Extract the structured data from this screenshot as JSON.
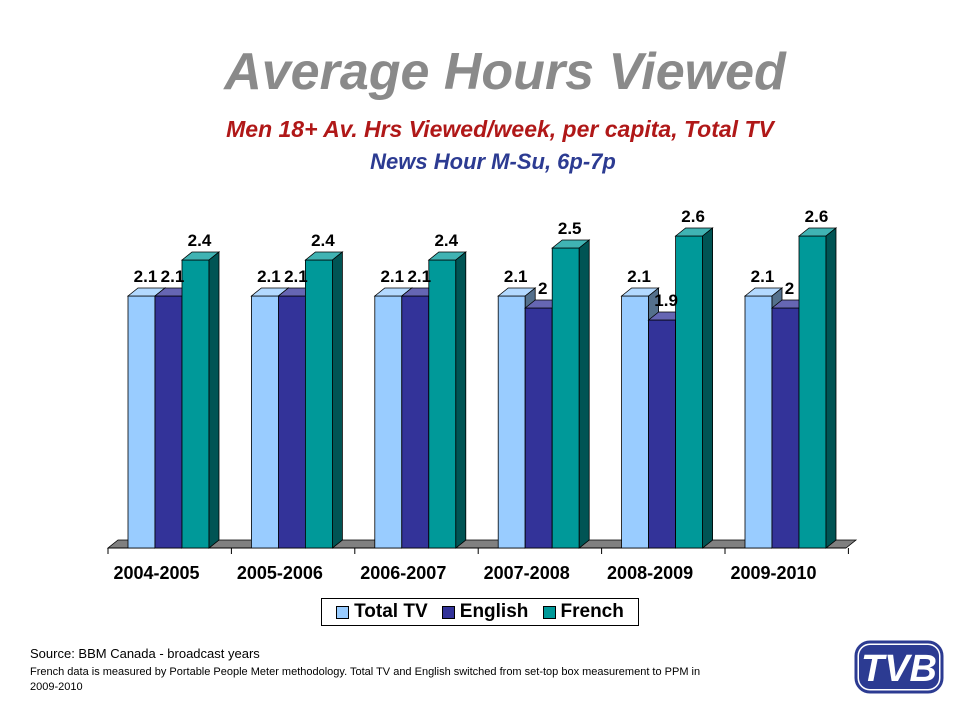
{
  "header": {
    "title": "Average Hours Viewed",
    "subtitle1": "Men 18+ Av. Hrs Viewed/week, per capita, Total TV",
    "subtitle2": "News Hour M-Su, 6p-7p"
  },
  "chart_data": {
    "type": "bar",
    "style": "3d-clustered",
    "categories": [
      "2004-2005",
      "2005-2006",
      "2006-2007",
      "2007-2008",
      "2008-2009",
      "2009-2010"
    ],
    "series": [
      {
        "name": "Total TV",
        "color": "#99ccff",
        "values": [
          2.1,
          2.1,
          2.1,
          2.1,
          2.1,
          2.1
        ],
        "labels": [
          "2.1",
          "2.1",
          "2.1",
          "2.1",
          "2.1",
          "2.1"
        ]
      },
      {
        "name": "English",
        "color": "#333399",
        "values": [
          2.1,
          2.1,
          2.1,
          2.0,
          1.9,
          2.0
        ],
        "labels": [
          "2.1",
          "2.1",
          "2.1",
          "2",
          "1.9",
          "2"
        ]
      },
      {
        "name": "French",
        "color": "#009999",
        "values": [
          2.4,
          2.4,
          2.4,
          2.5,
          2.6,
          2.6
        ],
        "labels": [
          "2.4",
          "2.4",
          "2.4",
          "2.5",
          "2.6",
          "2.6"
        ]
      }
    ],
    "ylim": [
      0,
      2.6
    ],
    "grid": false,
    "legend": "bottom"
  },
  "footer": {
    "source": "Source: BBM Canada - broadcast years",
    "note": "French data is measured by Portable People Meter methodology. Total TV and English switched from set-top box measurement  to PPM in 2009-2010"
  },
  "logo": {
    "text": "TVB",
    "color": "#2c3b92"
  }
}
